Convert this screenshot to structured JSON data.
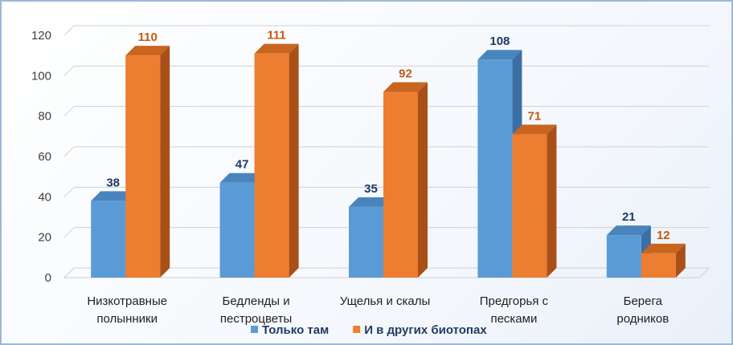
{
  "chart_data": {
    "type": "bar",
    "categories": [
      [
        "Низкотравные",
        "полынники"
      ],
      [
        "Бедленды и",
        "пестроцветы"
      ],
      [
        "Ущелья и скалы"
      ],
      [
        "Предгорья с",
        "песками"
      ],
      [
        "Берега",
        "родников"
      ]
    ],
    "series": [
      {
        "name": "Только там",
        "values": [
          38,
          47,
          35,
          108,
          21
        ]
      },
      {
        "name": "И в других биотопах",
        "values": [
          110,
          111,
          92,
          71,
          12
        ]
      }
    ],
    "yticks": [
      "0",
      "20",
      "40",
      "60",
      "80",
      "100",
      "120"
    ],
    "ylim": [
      0,
      120
    ],
    "grid": true,
    "legend_position": "bottom",
    "style": "3d-clustered-column"
  },
  "colors": {
    "series_front": [
      "#5b9bd5",
      "#ed7d31"
    ],
    "series_top": [
      "#4a84bd",
      "#c9651f"
    ],
    "series_side": [
      "#3a6fa6",
      "#a95018"
    ],
    "label": [
      "#1f3864",
      "#c55a11"
    ],
    "grid": "#d0d0d0"
  }
}
